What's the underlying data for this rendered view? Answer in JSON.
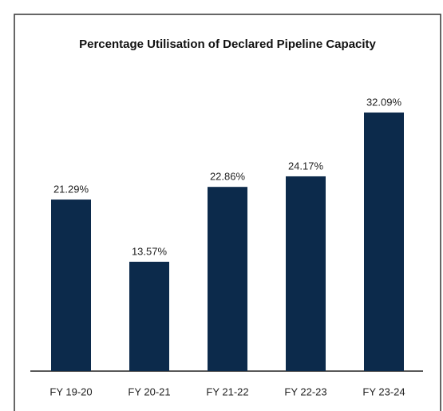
{
  "chart_data": {
    "type": "bar",
    "title": "Percentage Utilisation of Declared Pipeline Capacity",
    "categories": [
      "FY 19-20",
      "FY 20-21",
      "FY 21-22",
      "FY 22-23",
      "FY 23-24"
    ],
    "values": [
      21.29,
      13.57,
      22.86,
      24.17,
      32.09
    ],
    "value_labels": [
      "21.29%",
      "13.57%",
      "22.86%",
      "24.17%",
      "32.09%"
    ],
    "color": "#0c2a4b"
  }
}
